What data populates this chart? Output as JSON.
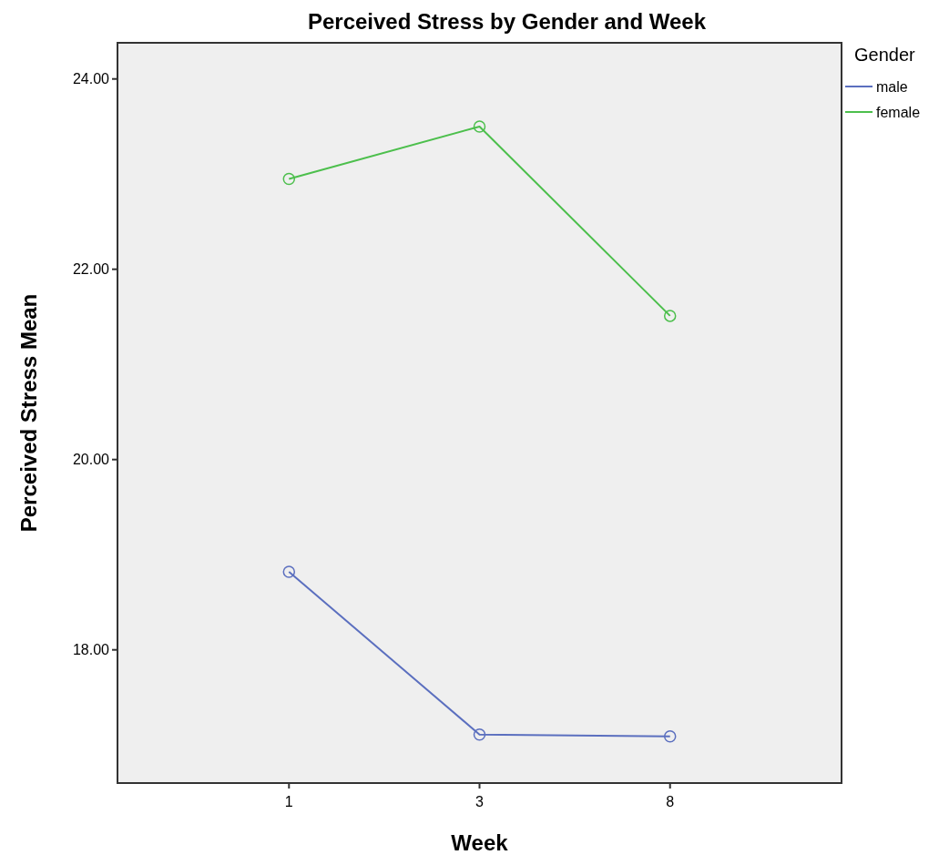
{
  "chart_data": {
    "type": "line",
    "title": "Perceived Stress by Gender and Week",
    "xlabel": "Week",
    "ylabel": "Perceived Stress Mean",
    "legend_title": "Gender",
    "categories": [
      "1",
      "3",
      "8"
    ],
    "series": [
      {
        "name": "male",
        "color": "#5b6fbf",
        "values": [
          18.82,
          17.11,
          17.09
        ]
      },
      {
        "name": "female",
        "color": "#4cbf4c",
        "values": [
          22.95,
          23.5,
          21.51
        ]
      }
    ],
    "ylim": [
      16.6,
      24.38
    ],
    "yticks": [
      {
        "value": 18,
        "label": "18.00"
      },
      {
        "value": 20,
        "label": "20.00"
      },
      {
        "value": 22,
        "label": "22.00"
      },
      {
        "value": 24,
        "label": "24.00"
      }
    ],
    "grid": false,
    "legend": "top right",
    "marker": "circle",
    "line_style": "solid"
  }
}
